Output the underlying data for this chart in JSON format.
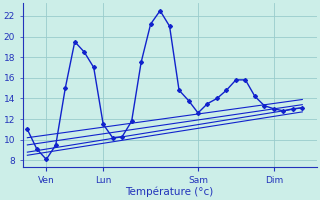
{
  "bg_color": "#cceee8",
  "plot_bg_color": "#cceee8",
  "line_color": "#1122cc",
  "grid_color": "#99cccc",
  "tick_color": "#2233bb",
  "xlabel": "Température (°c)",
  "xlabel_color": "#2233bb",
  "ylabel_ticks": [
    8,
    10,
    12,
    14,
    16,
    18,
    20,
    22
  ],
  "xlim": [
    -0.5,
    30.5
  ],
  "ylim": [
    7.4,
    23.2
  ],
  "xtick_positions": [
    2,
    8,
    18,
    26
  ],
  "xtick_labels": [
    "Ven",
    "Lun",
    "Sam",
    "Dim"
  ],
  "series": [
    [
      0,
      11
    ],
    [
      1,
      9.1
    ],
    [
      2,
      8.1
    ],
    [
      3,
      9.5
    ],
    [
      4,
      15.0
    ],
    [
      5,
      19.5
    ],
    [
      6,
      18.5
    ],
    [
      7,
      17.0
    ],
    [
      8,
      11.5
    ],
    [
      9,
      10.2
    ],
    [
      10,
      10.3
    ],
    [
      11,
      11.8
    ],
    [
      12,
      17.5
    ],
    [
      13,
      21.2
    ],
    [
      14,
      22.5
    ],
    [
      15,
      21.0
    ],
    [
      16,
      14.8
    ],
    [
      17,
      13.8
    ],
    [
      18,
      12.6
    ],
    [
      19,
      13.5
    ],
    [
      20,
      14.0
    ],
    [
      21,
      14.8
    ],
    [
      22,
      15.8
    ],
    [
      23,
      15.8
    ],
    [
      24,
      14.2
    ],
    [
      25,
      13.3
    ],
    [
      26,
      13.0
    ],
    [
      27,
      12.8
    ],
    [
      28,
      13.0
    ],
    [
      29,
      13.1
    ]
  ],
  "trend_lines": [
    {
      "x": [
        0,
        29
      ],
      "y": [
        8.8,
        13.1
      ]
    },
    {
      "x": [
        0,
        29
      ],
      "y": [
        8.5,
        12.7
      ]
    },
    {
      "x": [
        0,
        29
      ],
      "y": [
        9.5,
        13.4
      ]
    },
    {
      "x": [
        0,
        29
      ],
      "y": [
        10.2,
        13.9
      ]
    }
  ]
}
